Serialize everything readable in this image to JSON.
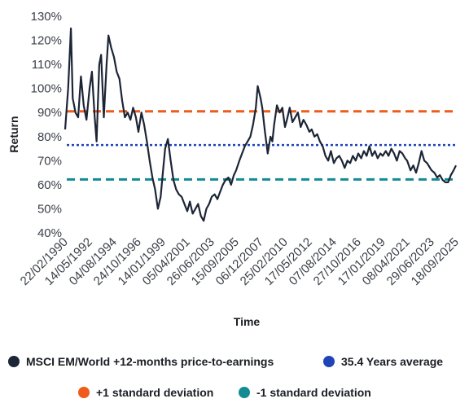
{
  "chart_data": {
    "type": "line",
    "title": "",
    "xlabel": "Time",
    "ylabel": "Return",
    "ylim": [
      40,
      130
    ],
    "y_ticks": [
      "40%",
      "50%",
      "60%",
      "70%",
      "80%",
      "90%",
      "100%",
      "110%",
      "120%",
      "130%"
    ],
    "x_ticks": [
      "22/02/1990",
      "14/05/1992",
      "04/08/1994",
      "24/10/1996",
      "14/01/1999",
      "05/04/2001",
      "26/06/2003",
      "15/09/2005",
      "06/12/2007",
      "25/02/2010",
      "17/05/2012",
      "07/08/2014",
      "27/10/2016",
      "17/01/2019",
      "08/04/2021",
      "29/06/2023",
      "18/09/2025"
    ],
    "grid": false,
    "legend_position": "bottom",
    "series": [
      {
        "name": "MSCI EM/World +12-months price-to-earnings",
        "color": "#1c2536",
        "style": "solid",
        "points": [
          [
            "1990-02-22",
            83
          ],
          [
            "1990-06-01",
            100
          ],
          [
            "1990-09-01",
            125
          ],
          [
            "1990-11-01",
            96
          ],
          [
            "1991-02-01",
            90
          ],
          [
            "1991-05-01",
            88
          ],
          [
            "1991-08-01",
            105
          ],
          [
            "1991-11-01",
            93
          ],
          [
            "1992-02-01",
            87
          ],
          [
            "1992-05-14",
            100
          ],
          [
            "1992-08-01",
            107
          ],
          [
            "1992-11-01",
            88
          ],
          [
            "1993-01-01",
            78
          ],
          [
            "1993-04-01",
            110
          ],
          [
            "1993-06-01",
            114
          ],
          [
            "1993-09-01",
            88
          ],
          [
            "1993-12-01",
            110
          ],
          [
            "1994-02-01",
            122
          ],
          [
            "1994-05-01",
            117
          ],
          [
            "1994-08-04",
            113
          ],
          [
            "1994-11-01",
            107
          ],
          [
            "1995-02-01",
            104
          ],
          [
            "1995-05-01",
            95
          ],
          [
            "1995-08-01",
            88
          ],
          [
            "1995-11-01",
            90
          ],
          [
            "1996-02-01",
            87
          ],
          [
            "1996-05-01",
            92
          ],
          [
            "1996-08-01",
            88
          ],
          [
            "1996-10-24",
            82
          ],
          [
            "1997-02-01",
            90
          ],
          [
            "1997-05-01",
            85
          ],
          [
            "1997-08-01",
            78
          ],
          [
            "1997-11-01",
            70
          ],
          [
            "1998-02-01",
            63
          ],
          [
            "1998-05-01",
            58
          ],
          [
            "1998-08-01",
            50
          ],
          [
            "1998-11-01",
            55
          ],
          [
            "1999-01-14",
            65
          ],
          [
            "1999-04-01",
            75
          ],
          [
            "1999-07-01",
            79
          ],
          [
            "1999-10-01",
            70
          ],
          [
            "2000-01-01",
            62
          ],
          [
            "2000-04-01",
            58
          ],
          [
            "2000-07-01",
            56
          ],
          [
            "2000-10-01",
            55
          ],
          [
            "2001-01-01",
            52
          ],
          [
            "2001-04-05",
            49
          ],
          [
            "2001-07-01",
            53
          ],
          [
            "2001-10-01",
            48
          ],
          [
            "2002-01-01",
            50
          ],
          [
            "2002-04-01",
            52
          ],
          [
            "2002-07-01",
            47
          ],
          [
            "2002-10-01",
            45
          ],
          [
            "2003-01-01",
            50
          ],
          [
            "2003-04-01",
            52
          ],
          [
            "2003-06-26",
            55
          ],
          [
            "2003-10-01",
            56
          ],
          [
            "2004-01-01",
            54
          ],
          [
            "2004-04-01",
            57
          ],
          [
            "2004-07-01",
            60
          ],
          [
            "2004-10-01",
            62
          ],
          [
            "2005-01-01",
            63
          ],
          [
            "2005-04-01",
            60
          ],
          [
            "2005-07-01",
            64
          ],
          [
            "2005-09-15",
            66
          ],
          [
            "2006-01-01",
            70
          ],
          [
            "2006-04-01",
            73
          ],
          [
            "2006-07-01",
            76
          ],
          [
            "2006-10-01",
            78
          ],
          [
            "2007-01-01",
            80
          ],
          [
            "2007-04-01",
            85
          ],
          [
            "2007-07-01",
            92
          ],
          [
            "2007-09-01",
            101
          ],
          [
            "2007-12-06",
            96
          ],
          [
            "2008-02-01",
            92
          ],
          [
            "2008-05-01",
            82
          ],
          [
            "2008-08-01",
            73
          ],
          [
            "2008-11-01",
            80
          ],
          [
            "2009-01-01",
            78
          ],
          [
            "2009-03-01",
            85
          ],
          [
            "2009-06-01",
            93
          ],
          [
            "2009-09-01",
            90
          ],
          [
            "2009-12-01",
            92
          ],
          [
            "2010-02-25",
            84
          ],
          [
            "2010-05-01",
            87
          ],
          [
            "2010-08-01",
            92
          ],
          [
            "2010-11-01",
            86
          ],
          [
            "2011-02-01",
            88
          ],
          [
            "2011-05-01",
            90
          ],
          [
            "2011-08-01",
            84
          ],
          [
            "2011-11-01",
            87
          ],
          [
            "2012-02-01",
            85
          ],
          [
            "2012-05-17",
            82
          ],
          [
            "2012-08-01",
            83
          ],
          [
            "2012-11-01",
            80
          ],
          [
            "2013-02-01",
            81
          ],
          [
            "2013-05-01",
            78
          ],
          [
            "2013-08-01",
            76
          ],
          [
            "2013-11-01",
            72
          ],
          [
            "2014-02-01",
            70
          ],
          [
            "2014-05-01",
            74
          ],
          [
            "2014-08-07",
            69
          ],
          [
            "2014-11-01",
            71
          ],
          [
            "2015-02-01",
            72
          ],
          [
            "2015-05-01",
            70
          ],
          [
            "2015-08-01",
            67
          ],
          [
            "2015-11-01",
            70
          ],
          [
            "2016-02-01",
            69
          ],
          [
            "2016-05-01",
            72
          ],
          [
            "2016-08-01",
            70
          ],
          [
            "2016-10-27",
            73
          ],
          [
            "2017-02-01",
            71
          ],
          [
            "2017-05-01",
            74
          ],
          [
            "2017-08-01",
            72
          ],
          [
            "2017-11-01",
            76
          ],
          [
            "2018-02-01",
            72
          ],
          [
            "2018-05-01",
            74
          ],
          [
            "2018-08-01",
            71
          ],
          [
            "2018-11-01",
            73
          ],
          [
            "2019-01-17",
            72
          ],
          [
            "2019-05-01",
            74
          ],
          [
            "2019-08-01",
            72
          ],
          [
            "2019-11-01",
            75
          ],
          [
            "2020-02-01",
            73
          ],
          [
            "2020-05-01",
            70
          ],
          [
            "2020-08-01",
            74
          ],
          [
            "2020-11-01",
            73
          ],
          [
            "2021-02-01",
            71
          ],
          [
            "2021-04-08",
            70
          ],
          [
            "2021-08-01",
            66
          ],
          [
            "2021-11-01",
            68
          ],
          [
            "2022-02-01",
            65
          ],
          [
            "2022-05-01",
            69
          ],
          [
            "2022-08-01",
            74
          ],
          [
            "2022-11-01",
            70
          ],
          [
            "2023-02-01",
            69
          ],
          [
            "2023-06-29",
            66
          ],
          [
            "2023-10-01",
            65
          ],
          [
            "2024-01-01",
            63
          ],
          [
            "2024-04-01",
            64
          ],
          [
            "2024-07-01",
            62
          ],
          [
            "2024-10-01",
            61
          ],
          [
            "2025-01-01",
            61
          ],
          [
            "2025-04-01",
            64
          ],
          [
            "2025-07-01",
            66
          ],
          [
            "2025-09-18",
            68
          ]
        ]
      },
      {
        "name": "35.4 Years average",
        "color": "#1f44b8",
        "style": "dotted",
        "value": 76.5
      },
      {
        "name": "+1 standard deviation",
        "color": "#ef5a1d",
        "style": "dashed",
        "value": 90.5
      },
      {
        "name": "-1 standard deviation",
        "color": "#138b93",
        "style": "dashed",
        "value": 62.2
      }
    ]
  },
  "legend": {
    "items": [
      {
        "label": "MSCI EM/World +12-months price-to-earnings",
        "color": "#1c2536"
      },
      {
        "label": "35.4 Years average",
        "color": "#1f44b8"
      },
      {
        "label": "+1 standard deviation",
        "color": "#ef5a1d"
      },
      {
        "label": "-1 standard deviation",
        "color": "#138b93"
      }
    ]
  }
}
